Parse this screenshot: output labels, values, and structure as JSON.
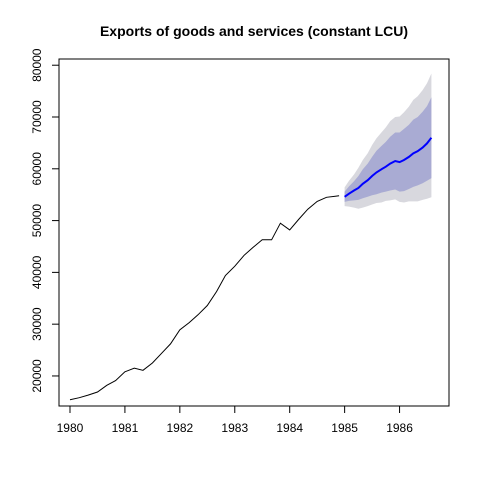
{
  "chart_data": {
    "type": "line",
    "title": "Exports of goods and services (constant LCU)",
    "xlabel": "",
    "ylabel": "",
    "xlim": [
      1979.8,
      1986.9
    ],
    "ylim": [
      14200,
      81200
    ],
    "x_ticks": [
      1980,
      1981,
      1982,
      1983,
      1984,
      1985,
      1986
    ],
    "y_ticks": [
      20000,
      30000,
      40000,
      50000,
      60000,
      70000,
      80000
    ],
    "grid": false,
    "legend": "none",
    "colors": {
      "history": "#000000",
      "forecast": "#0000ff",
      "band80": "#a9abd3",
      "band95": "#d8d8de"
    },
    "series": [
      {
        "role": "history",
        "x": [
          1980.0,
          1980.17,
          1980.33,
          1980.5,
          1980.67,
          1980.83,
          1981.0,
          1981.17,
          1981.33,
          1981.5,
          1981.67,
          1981.83,
          1982.0,
          1982.17,
          1982.33,
          1982.5,
          1982.67,
          1982.83,
          1983.0,
          1983.17,
          1983.33,
          1983.5,
          1983.67,
          1983.83,
          1984.0,
          1984.17,
          1984.33,
          1984.5,
          1984.67,
          1984.83,
          1984.9
        ],
        "values": [
          15400,
          15800,
          16300,
          16900,
          18200,
          19100,
          20800,
          21500,
          21100,
          22500,
          24400,
          26200,
          28900,
          30300,
          31800,
          33600,
          36300,
          39400,
          41200,
          43300,
          44800,
          46300,
          46300,
          49500,
          48200,
          50300,
          52200,
          53700,
          54500,
          54700,
          54800
        ]
      },
      {
        "role": "forecast",
        "x": [
          1985.0,
          1985.08,
          1985.17,
          1985.25,
          1985.33,
          1985.42,
          1985.5,
          1985.58,
          1985.67,
          1985.75,
          1985.83,
          1985.92,
          1986.0,
          1986.08,
          1986.17,
          1986.25,
          1986.33,
          1986.42,
          1986.5,
          1986.58
        ],
        "values": [
          54600,
          55200,
          55800,
          56300,
          57100,
          57800,
          58600,
          59300,
          59900,
          60400,
          61000,
          61500,
          61300,
          61700,
          62300,
          63000,
          63400,
          64100,
          64900,
          66000
        ],
        "lo80": [
          53600,
          53800,
          53900,
          54000,
          54300,
          54600,
          54900,
          55100,
          55400,
          55600,
          55800,
          56000,
          55600,
          55700,
          56100,
          56500,
          56800,
          57200,
          57700,
          58200
        ],
        "hi80": [
          55600,
          56600,
          57600,
          58600,
          59900,
          61000,
          62300,
          63500,
          64400,
          65200,
          66200,
          67000,
          67000,
          67700,
          68500,
          69500,
          70000,
          71000,
          72100,
          73800
        ],
        "lo95": [
          52800,
          52700,
          52500,
          52300,
          52500,
          52800,
          53100,
          53400,
          53500,
          53800,
          53900,
          54100,
          53600,
          53500,
          53700,
          53700,
          53700,
          54000,
          54200,
          54500
        ],
        "hi95": [
          56400,
          57700,
          58900,
          60200,
          61700,
          63000,
          64600,
          65900,
          67000,
          68000,
          69200,
          70000,
          70100,
          70900,
          72000,
          73300,
          74000,
          75200,
          76500,
          78400
        ]
      }
    ]
  }
}
